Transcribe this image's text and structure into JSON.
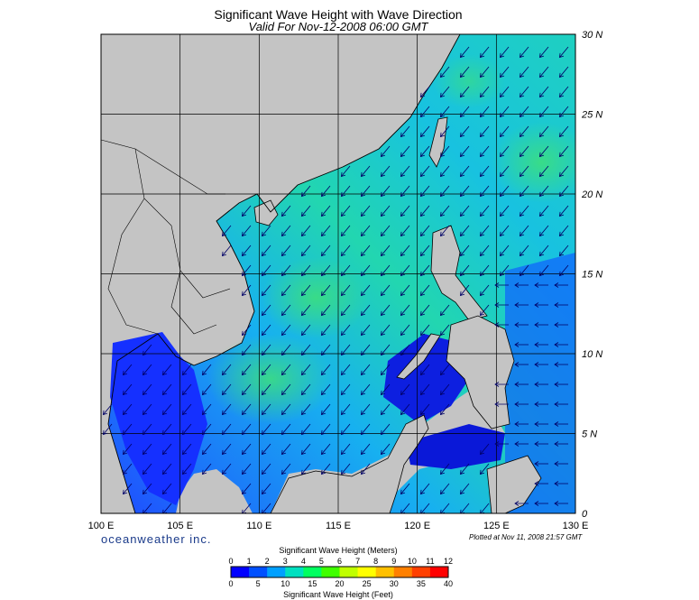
{
  "title": "Significant Wave Height with Wave Direction",
  "subtitle": "Valid For Nov-12-2008 06:00 GMT",
  "brand": "oceanweather inc.",
  "plotted": "Plotted at Nov 11, 2008 21:57 GMT",
  "map": {
    "lon_range": [
      100,
      130
    ],
    "lat_range": [
      0,
      30
    ],
    "lon_labels": [
      "100 E",
      "105 E",
      "110 E",
      "115 E",
      "120 E",
      "125 E",
      "130 E"
    ],
    "lat_labels": [
      "0",
      "5 N",
      "10 N",
      "15 N",
      "20 N",
      "25 N",
      "30 N"
    ],
    "grid": true,
    "land_color": "#c4c4c4",
    "arrow_color": "#000066"
  },
  "colorbar": {
    "meters_title": "Significant Wave Height (Meters)",
    "feet_title": "Significant Wave Height (Feet)",
    "meters_ticks": [
      "0",
      "1",
      "2",
      "3",
      "4",
      "5",
      "6",
      "7",
      "8",
      "9",
      "10",
      "11",
      "12"
    ],
    "feet_ticks": [
      "0",
      "5",
      "10",
      "15",
      "20",
      "25",
      "30",
      "35",
      "40"
    ],
    "colors": [
      "#0000ff",
      "#0050ff",
      "#00a0ff",
      "#00e0c0",
      "#00ff60",
      "#40ff00",
      "#c0ff00",
      "#ffff00",
      "#ffc000",
      "#ff8000",
      "#ff4000",
      "#ff0000"
    ]
  }
}
